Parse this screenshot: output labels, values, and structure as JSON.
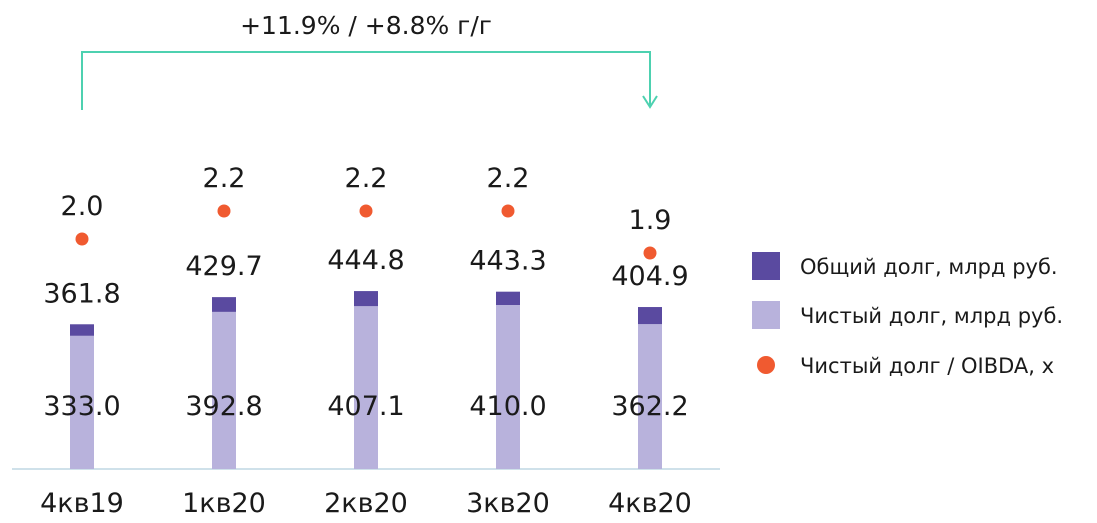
{
  "chart_data": {
    "type": "bar",
    "categories": [
      "4кв19",
      "1кв20",
      "2кв20",
      "3кв20",
      "4кв20"
    ],
    "series": [
      {
        "name": "Общий долг, млрд руб.",
        "kind": "bar-stacked-top",
        "values": [
          361.8,
          429.7,
          444.8,
          443.3,
          404.9
        ],
        "labels": [
          "361.8",
          "429.7",
          "444.8",
          "443.3",
          "404.9"
        ],
        "color": "#5a4aa0"
      },
      {
        "name": "Чистый долг, млрд руб.",
        "kind": "bar",
        "values": [
          333.0,
          392.8,
          407.1,
          410.0,
          362.2
        ],
        "labels": [
          "333.0",
          "392.8",
          "407.1",
          "410.0",
          "362.2"
        ],
        "color": "#b8b2dc"
      },
      {
        "name": "Чистый долг / OIBDA, x",
        "kind": "dot",
        "values": [
          2.0,
          2.2,
          2.2,
          2.2,
          1.9
        ],
        "labels": [
          "2.0",
          "2.2",
          "2.2",
          "2.2",
          "1.9"
        ],
        "color": "#f05a30"
      }
    ],
    "annotation": {
      "text": "+11.9% / +8.8% г/г",
      "from": "4кв19",
      "to": "4кв20",
      "color": "#4dd1b0"
    },
    "legend_position": "right"
  }
}
